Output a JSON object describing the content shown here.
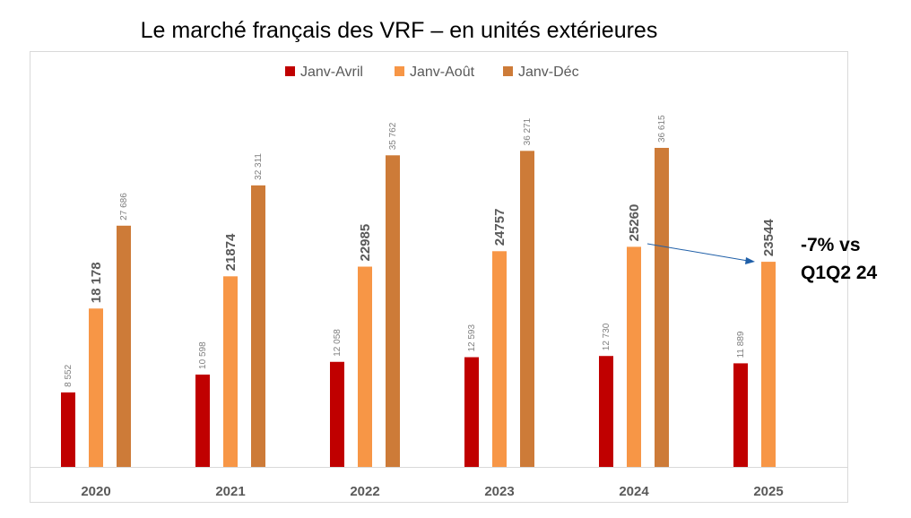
{
  "chart_data": {
    "type": "bar",
    "title": "Le marché français des VRF – en unités extérieures",
    "categories": [
      "2020",
      "2021",
      "2022",
      "2023",
      "2024",
      "2025"
    ],
    "series": [
      {
        "name": "Janv-Avril",
        "color": "#C00000",
        "values": [
          8552,
          10598,
          12058,
          12593,
          12730,
          11889
        ],
        "labels": [
          "8 552",
          "10 598",
          "12 058",
          "12 593",
          "12 730",
          "11 889"
        ]
      },
      {
        "name": "Janv-Août",
        "color": "#F79646",
        "values": [
          18178,
          21874,
          22985,
          24757,
          25260,
          23544
        ],
        "labels": [
          "18 178",
          "21874",
          "22985",
          "24757",
          "25260",
          "23544"
        ]
      },
      {
        "name": "Janv-Déc",
        "color": "#CD7B38",
        "values": [
          27686,
          32311,
          35762,
          36271,
          36615,
          null
        ],
        "labels": [
          "27 686",
          "32 311",
          "35 762",
          "36 271",
          "36 615",
          ""
        ]
      }
    ],
    "ylim": [
      0,
      36615
    ],
    "grid": false,
    "legend": "top",
    "annotation": {
      "line1": "-7% vs",
      "line2": "Q1Q2 24",
      "arrow_color": "#1F5FA8"
    }
  }
}
